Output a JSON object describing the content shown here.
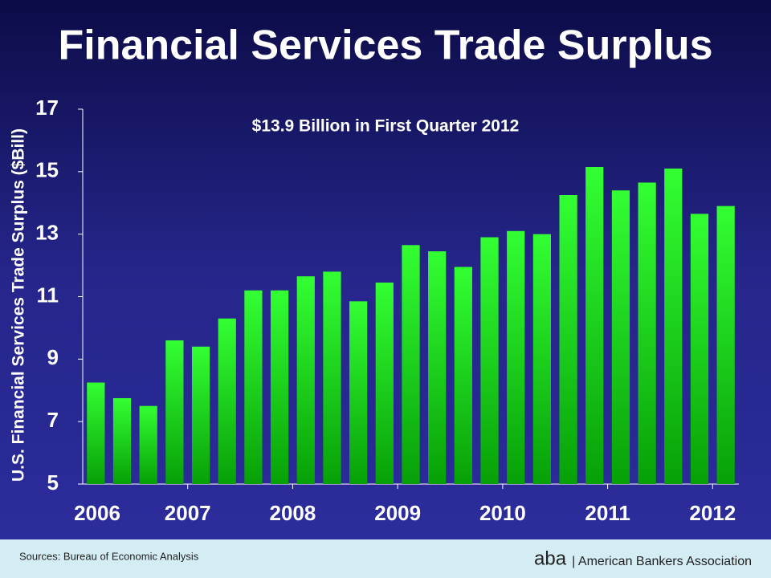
{
  "chart_data": {
    "type": "bar",
    "title": "Financial Services Trade Surplus",
    "annotation": "$13.9 Billion in First Quarter 2012",
    "y_label": "U.S. Financial Services Trade Surplus ($Bill)",
    "categories": [
      "2006",
      null,
      null,
      null,
      "2007",
      null,
      null,
      null,
      "2008",
      null,
      null,
      null,
      "2009",
      null,
      null,
      null,
      "2010",
      null,
      null,
      null,
      "2011",
      null,
      null,
      null,
      "2012"
    ],
    "values": [
      8.25,
      7.75,
      7.5,
      9.6,
      9.4,
      10.3,
      11.2,
      11.2,
      11.65,
      11.8,
      10.85,
      11.45,
      12.65,
      12.45,
      11.95,
      12.9,
      13.1,
      13.0,
      14.25,
      15.15,
      14.4,
      14.65,
      15.1,
      13.65,
      13.9
    ],
    "color": "#33ff33",
    "ylim": [
      5,
      17
    ],
    "yticks": [
      5,
      7,
      9,
      11,
      13,
      15,
      17
    ],
    "grid": false,
    "source": "Sources: Bureau of Economic Analysis",
    "organization": "| American Bankers Association"
  }
}
